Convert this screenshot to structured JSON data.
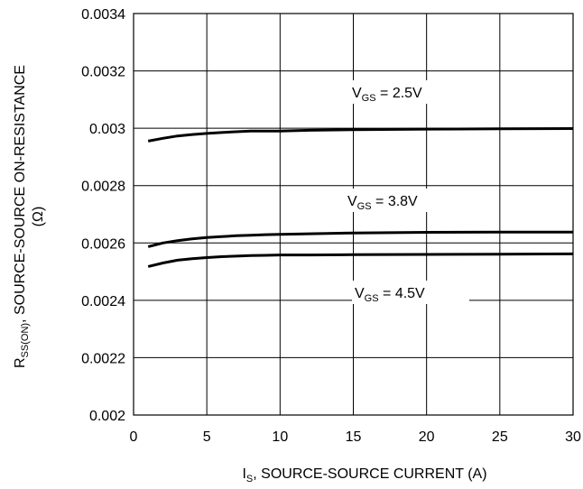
{
  "chart_data": {
    "type": "line",
    "xlabel": {
      "main": "I",
      "sub": "S",
      "rest": ", SOURCE-SOURCE CURRENT (A)"
    },
    "ylabel": {
      "line1_main": "R",
      "line1_sub": "SS(ON)",
      "line1_rest": ", SOURCE-SOURCE ON-RESISTANCE",
      "line2": "(Ω)"
    },
    "xlim": [
      0,
      30
    ],
    "ylim": [
      0.002,
      0.0034
    ],
    "x_ticks": [
      0,
      5,
      10,
      15,
      20,
      25,
      30
    ],
    "x_tick_labels": [
      "0",
      "5",
      "10",
      "15",
      "20",
      "25",
      "30"
    ],
    "y_ticks": [
      0.002,
      0.0022,
      0.0024,
      0.0026,
      0.0028,
      0.003,
      0.0032,
      0.0034
    ],
    "y_tick_labels": [
      "0.002",
      "0.0022",
      "0.0024",
      "0.0026",
      "0.0028",
      "0.003",
      "0.0032",
      "0.0034"
    ],
    "grid": true,
    "series": [
      {
        "name": "VGS = 2.5V",
        "x": [
          1,
          2,
          3,
          4,
          5,
          6,
          7,
          8,
          9,
          10,
          12,
          15,
          20,
          25,
          30
        ],
        "y": [
          0.002955,
          0.002965,
          0.002973,
          0.002978,
          0.002982,
          0.002985,
          0.002988,
          0.00299,
          0.00299,
          0.00299,
          0.002993,
          0.002995,
          0.002997,
          0.002998,
          0.002999
        ]
      },
      {
        "name": "VGS = 3.8V",
        "x": [
          1,
          2,
          3,
          4,
          5,
          6,
          7,
          8,
          9,
          10,
          12,
          15,
          20,
          25,
          30
        ],
        "y": [
          0.002587,
          0.0026,
          0.002608,
          0.002614,
          0.002619,
          0.002622,
          0.002625,
          0.002627,
          0.002629,
          0.00263,
          0.002632,
          0.002635,
          0.002637,
          0.002638,
          0.002638
        ]
      },
      {
        "name": "VGS = 4.5V",
        "x": [
          1,
          2,
          3,
          4,
          5,
          6,
          7,
          8,
          9,
          10,
          12,
          15,
          20,
          25,
          30
        ],
        "y": [
          0.002518,
          0.00253,
          0.00254,
          0.002545,
          0.002549,
          0.002552,
          0.002554,
          0.002556,
          0.002557,
          0.002558,
          0.002558,
          0.002559,
          0.00256,
          0.002561,
          0.002562
        ]
      }
    ],
    "annotations": [
      {
        "main": "V",
        "sub": "GS",
        "rest": " = 2.5V",
        "series": 0
      },
      {
        "main": "V",
        "sub": "GS",
        "rest": " = 3.8V",
        "series": 1
      },
      {
        "main": "V",
        "sub": "GS",
        "rest": " = 4.5V",
        "series": 2
      }
    ]
  }
}
